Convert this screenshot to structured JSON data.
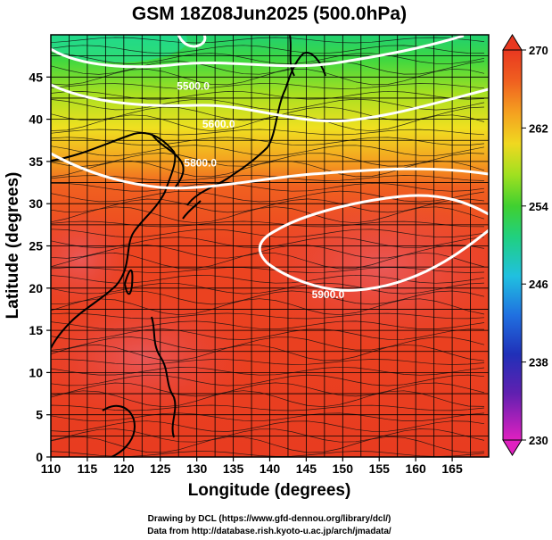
{
  "chart_data": {
    "type": "heatmap",
    "title": "GSM 18Z08Jun2025 (500.0hPa)",
    "xlabel": "Longitude (degrees)",
    "ylabel": "Latitude  (degrees)",
    "xlim": [
      110,
      170
    ],
    "ylim": [
      0,
      50
    ],
    "x_ticks": [
      "110",
      "115",
      "120",
      "125",
      "130",
      "135",
      "140",
      "145",
      "150",
      "155",
      "160",
      "165"
    ],
    "y_ticks": [
      "0",
      "5",
      "10",
      "15",
      "20",
      "25",
      "30",
      "35",
      "40",
      "45"
    ],
    "colorbar": {
      "min": 230,
      "max": 270,
      "tick_labels": [
        "230",
        "238",
        "246",
        "254",
        "262",
        "270"
      ],
      "colors": [
        "#e020c0",
        "#4020b0",
        "#2060e0",
        "#20c8e0",
        "#20d060",
        "#a0e020",
        "#f0d020",
        "#f08020",
        "#e83820"
      ]
    },
    "contour_labels": [
      {
        "text": "5500.0",
        "lon": 129.5,
        "lat": 43.5
      },
      {
        "text": "5600.0",
        "lon": 133,
        "lat": 39
      },
      {
        "text": "5800.0",
        "lon": 130.5,
        "lat": 34.4
      },
      {
        "text": "5900.0",
        "lon": 148,
        "lat": 18.8
      }
    ],
    "grid": true
  },
  "credits": {
    "line1": "Drawing by DCL (https://www.gfd-dennou.org/library/dcl/)",
    "line2": "Data from http://database.rish.kyoto-u.ac.jp/arch/jmadata/"
  }
}
